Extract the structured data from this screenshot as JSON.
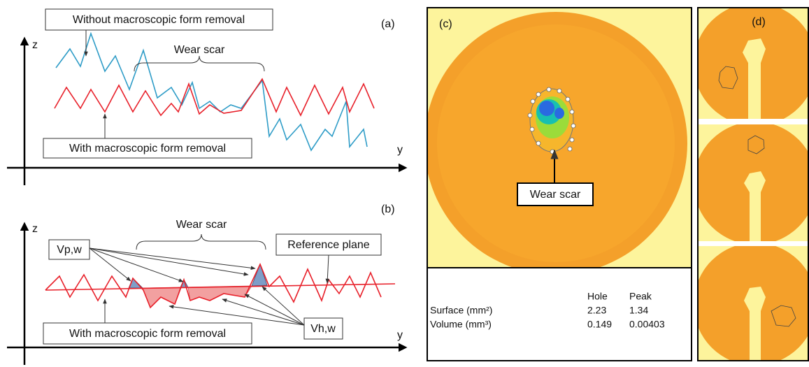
{
  "panel_a": {
    "label": "(a)",
    "axis_z": "z",
    "axis_y": "y",
    "top_box": "Without macroscopic form removal",
    "brace_label": "Wear scar",
    "bottom_box": "With macroscopic form removal"
  },
  "panel_b": {
    "label": "(b)",
    "axis_z": "z",
    "axis_y": "y",
    "vp": "Vp,w",
    "brace_label": "Wear scar",
    "reference": "Reference plane",
    "bottom_box": "With macroscopic form removal",
    "vh": "Vh,w"
  },
  "panel_c": {
    "label": "(c)",
    "callout": "Wear scar",
    "table": {
      "header": [
        "Hole",
        "Peak"
      ],
      "rows": [
        [
          "Surface (mm²)",
          2.23,
          1.34
        ],
        [
          "Volume (mm³)",
          0.149,
          0.00403
        ]
      ]
    }
  },
  "panel_d": {
    "label": "(d)"
  }
}
